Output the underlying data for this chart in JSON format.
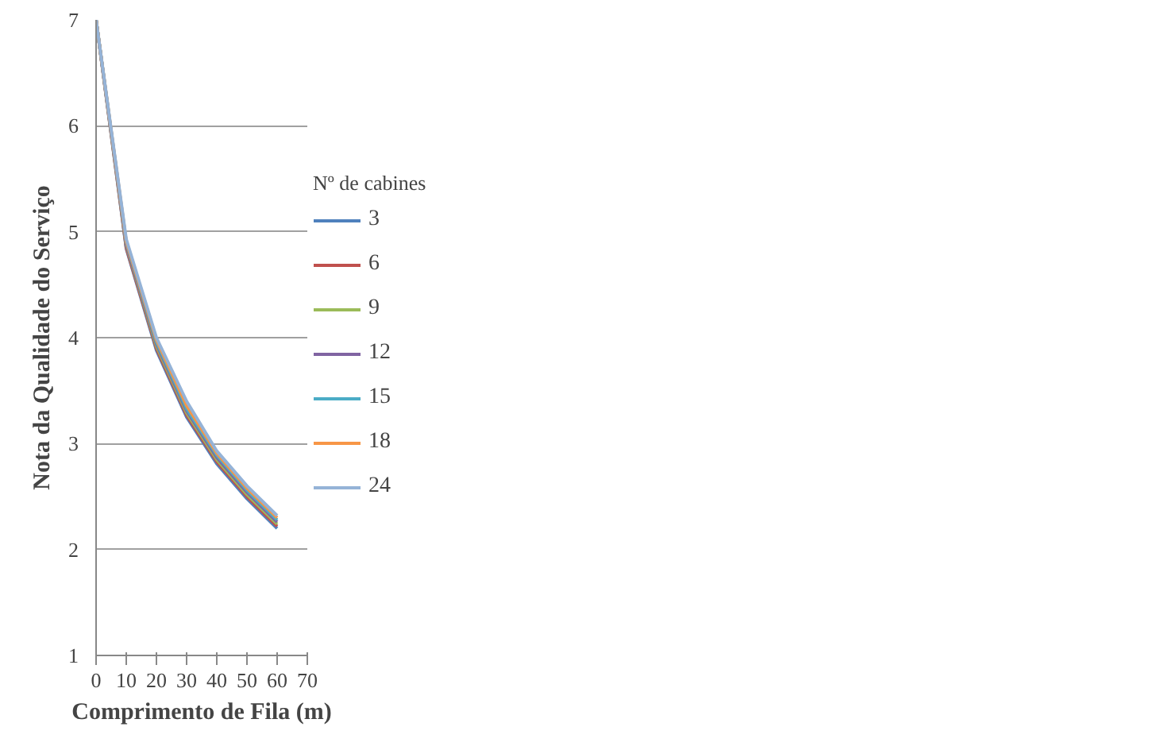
{
  "chart_data": {
    "type": "line",
    "xlabel": "Comprimento de Fila (m)",
    "ylabel": "Nota da Qualidade do Serviço",
    "legend_title": "Nº de cabines",
    "x": [
      0,
      10,
      20,
      30,
      40,
      50,
      60
    ],
    "xlim": [
      0,
      70
    ],
    "xticks": [
      0,
      10,
      20,
      30,
      40,
      50,
      60,
      70
    ],
    "ylim": [
      1,
      7
    ],
    "yticks": [
      1,
      2,
      3,
      4,
      5,
      6,
      7
    ],
    "grid": "y",
    "legend": "right",
    "marker": "none",
    "line_style": "solid",
    "series": [
      {
        "name": "3",
        "color": "#4f81bd",
        "values": [
          7,
          4.84,
          3.88,
          3.25,
          2.81,
          2.48,
          2.2
        ]
      },
      {
        "name": "6",
        "color": "#c0504d",
        "values": [
          7,
          4.85,
          3.9,
          3.27,
          2.83,
          2.5,
          2.22
        ]
      },
      {
        "name": "9",
        "color": "#9bbb59",
        "values": [
          7,
          4.87,
          3.92,
          3.29,
          2.85,
          2.52,
          2.24
        ]
      },
      {
        "name": "12",
        "color": "#8064a2",
        "values": [
          7,
          4.88,
          3.94,
          3.31,
          2.87,
          2.54,
          2.26
        ]
      },
      {
        "name": "15",
        "color": "#4bacc6",
        "values": [
          7,
          4.9,
          3.96,
          3.33,
          2.89,
          2.56,
          2.28
        ]
      },
      {
        "name": "18",
        "color": "#f79646",
        "values": [
          7,
          4.91,
          3.98,
          3.36,
          2.91,
          2.58,
          2.3
        ]
      },
      {
        "name": "24",
        "color": "#95b3d7",
        "values": [
          7,
          4.93,
          4.0,
          3.4,
          2.93,
          2.6,
          2.32
        ]
      }
    ]
  }
}
